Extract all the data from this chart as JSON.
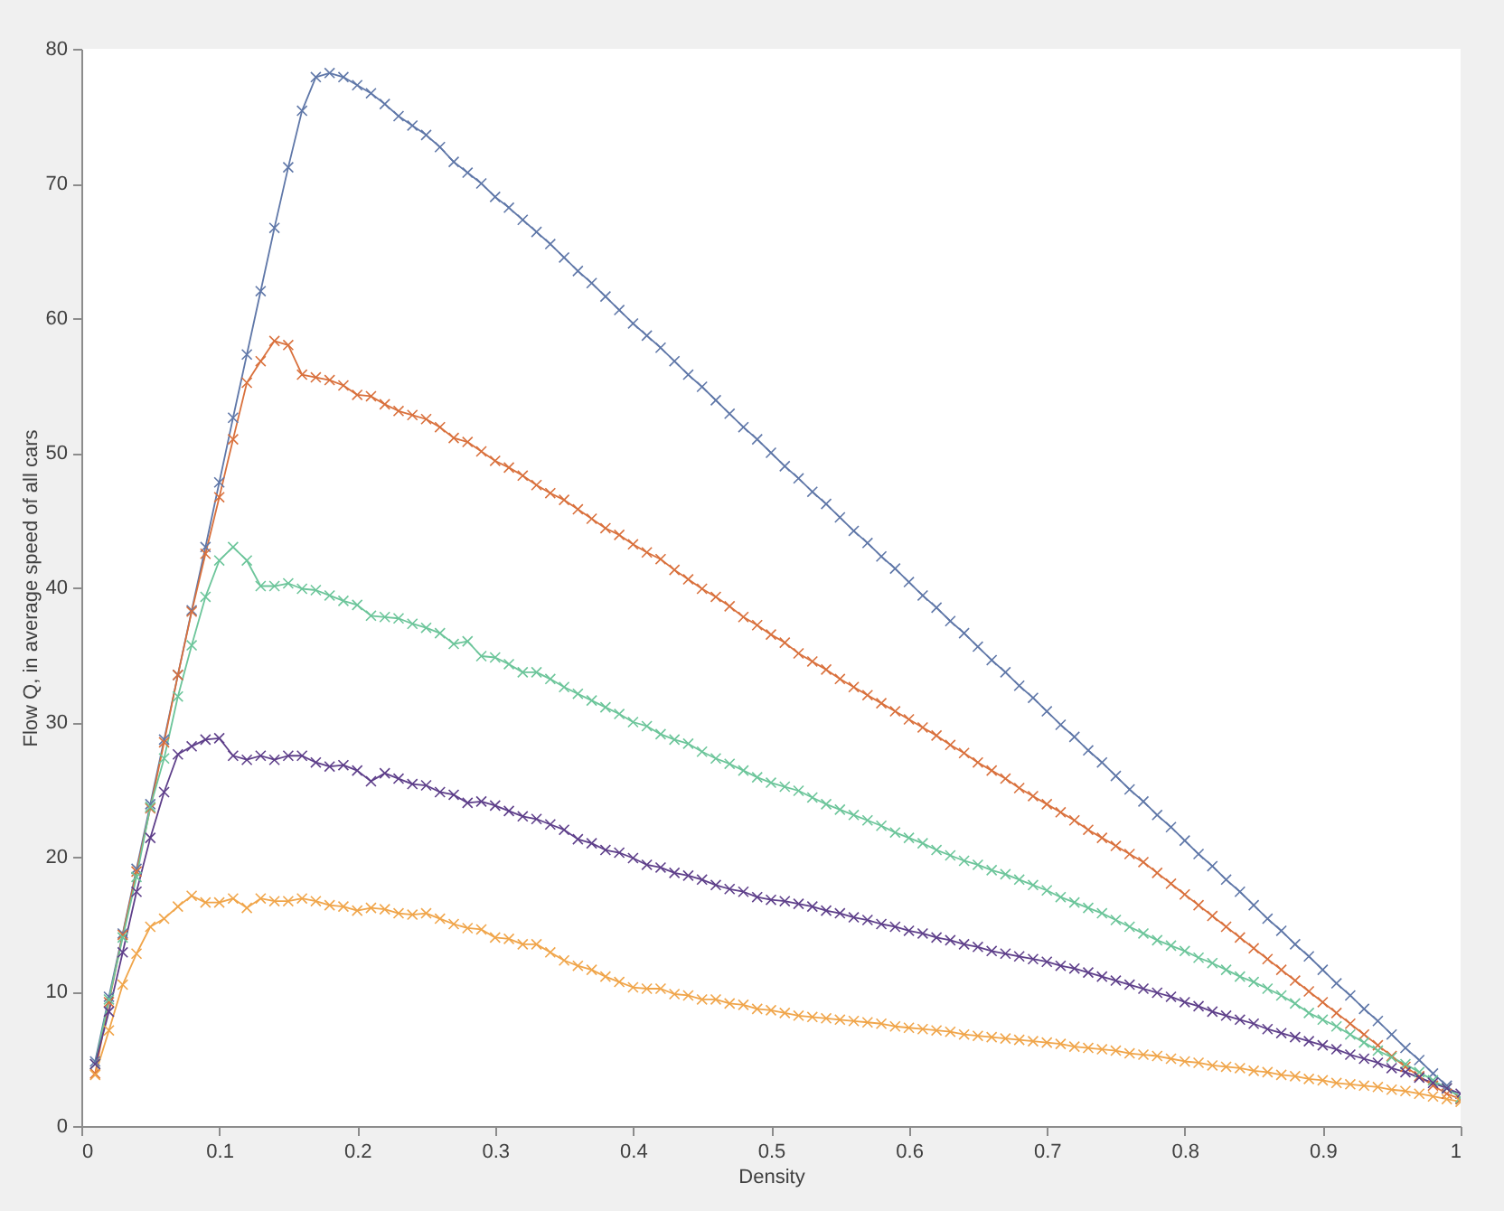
{
  "chart_data": {
    "type": "line",
    "xlabel": "Density",
    "ylabel": "Flow Q, in average speed of all cars",
    "x": [
      0.01,
      0.02,
      0.03,
      0.04,
      0.05,
      0.06,
      0.07,
      0.08,
      0.09,
      0.1,
      0.11,
      0.12,
      0.13,
      0.14,
      0.15,
      0.16,
      0.17,
      0.18,
      0.19,
      0.2,
      0.21,
      0.22,
      0.23,
      0.24,
      0.25,
      0.26,
      0.27,
      0.28,
      0.29,
      0.3,
      0.31,
      0.32,
      0.33,
      0.34,
      0.35,
      0.36,
      0.37,
      0.38,
      0.39,
      0.4,
      0.41,
      0.42,
      0.43,
      0.44,
      0.45,
      0.46,
      0.47,
      0.48,
      0.49,
      0.5,
      0.51,
      0.52,
      0.53,
      0.54,
      0.55,
      0.56,
      0.57,
      0.58,
      0.59,
      0.6,
      0.61,
      0.62,
      0.63,
      0.64,
      0.65,
      0.66,
      0.67,
      0.68,
      0.69,
      0.7,
      0.71,
      0.72,
      0.73,
      0.74,
      0.75,
      0.76,
      0.77,
      0.78,
      0.79,
      0.8,
      0.81,
      0.82,
      0.83,
      0.84,
      0.85,
      0.86,
      0.87,
      0.88,
      0.89,
      0.9,
      0.91,
      0.92,
      0.93,
      0.94,
      0.95,
      0.96,
      0.97,
      0.98,
      0.99,
      1.0
    ],
    "xlim": [
      0,
      1
    ],
    "xticks": [
      0,
      0.1,
      0.2,
      0.3,
      0.4,
      0.5,
      0.6,
      0.7,
      0.8,
      0.9,
      1
    ],
    "ylim": [
      0,
      80
    ],
    "yticks": [
      0,
      10,
      20,
      30,
      40,
      50,
      60,
      70,
      80
    ],
    "marker": "cross",
    "line_style": "solid",
    "series": [
      {
        "color": "#5f77a8",
        "values": [
          4.8,
          9.6,
          14.3,
          19.1,
          23.9,
          28.7,
          33.5,
          38.3,
          43.0,
          47.8,
          52.6,
          57.3,
          62.0,
          66.7,
          71.2,
          75.4,
          77.9,
          78.2,
          77.9,
          77.3,
          76.7,
          75.9,
          75.0,
          74.3,
          73.6,
          72.7,
          71.6,
          70.8,
          70.0,
          69.0,
          68.2,
          67.3,
          66.4,
          65.5,
          64.5,
          63.5,
          62.6,
          61.6,
          60.6,
          59.6,
          58.7,
          57.8,
          56.8,
          55.8,
          54.9,
          53.9,
          52.9,
          51.9,
          51.0,
          50.0,
          49.0,
          48.1,
          47.1,
          46.2,
          45.2,
          44.2,
          43.3,
          42.3,
          41.4,
          40.4,
          39.4,
          38.5,
          37.5,
          36.6,
          35.6,
          34.6,
          33.7,
          32.7,
          31.8,
          30.8,
          29.8,
          28.9,
          27.9,
          27.0,
          26.0,
          25.0,
          24.1,
          23.1,
          22.2,
          21.2,
          20.2,
          19.3,
          18.3,
          17.4,
          16.4,
          15.4,
          14.5,
          13.5,
          12.6,
          11.6,
          10.6,
          9.7,
          8.7,
          7.8,
          6.8,
          5.8,
          4.9,
          3.9,
          3.0,
          2.0
        ]
      },
      {
        "color": "#d9703c",
        "values": [
          3.9,
          9.2,
          14.2,
          18.9,
          23.6,
          28.5,
          33.5,
          38.2,
          42.5,
          46.7,
          51.0,
          55.2,
          56.8,
          58.3,
          58.0,
          55.8,
          55.6,
          55.4,
          55.0,
          54.3,
          54.2,
          53.6,
          53.1,
          52.8,
          52.5,
          51.9,
          51.1,
          50.8,
          50.1,
          49.4,
          48.9,
          48.3,
          47.6,
          47.0,
          46.5,
          45.8,
          45.1,
          44.4,
          43.9,
          43.2,
          42.6,
          42.1,
          41.3,
          40.6,
          39.9,
          39.3,
          38.6,
          37.8,
          37.2,
          36.5,
          35.9,
          35.1,
          34.5,
          33.9,
          33.2,
          32.6,
          32.0,
          31.4,
          30.8,
          30.2,
          29.6,
          29.0,
          28.3,
          27.7,
          27.0,
          26.4,
          25.8,
          25.1,
          24.5,
          23.9,
          23.3,
          22.7,
          22.0,
          21.4,
          20.8,
          20.2,
          19.6,
          18.8,
          18.0,
          17.2,
          16.4,
          15.6,
          14.8,
          14.0,
          13.2,
          12.4,
          11.6,
          10.8,
          10.0,
          9.2,
          8.4,
          7.6,
          6.8,
          6.0,
          5.2,
          4.4,
          3.7,
          3.0,
          2.4,
          2.0
        ]
      },
      {
        "color": "#6cc59a",
        "values": [
          4.6,
          9.4,
          14.0,
          18.5,
          23.7,
          27.3,
          31.9,
          35.7,
          39.3,
          42.0,
          43.0,
          42.0,
          40.1,
          40.1,
          40.3,
          39.9,
          39.8,
          39.4,
          39.0,
          38.7,
          37.9,
          37.8,
          37.7,
          37.3,
          37.0,
          36.6,
          35.8,
          36.0,
          34.9,
          34.8,
          34.3,
          33.7,
          33.7,
          33.2,
          32.6,
          32.1,
          31.6,
          31.1,
          30.6,
          30.0,
          29.7,
          29.1,
          28.7,
          28.4,
          27.8,
          27.3,
          26.9,
          26.4,
          25.9,
          25.5,
          25.2,
          24.9,
          24.4,
          23.9,
          23.5,
          23.1,
          22.7,
          22.3,
          21.8,
          21.4,
          21.0,
          20.5,
          20.1,
          19.7,
          19.4,
          19.0,
          18.7,
          18.3,
          17.9,
          17.5,
          17.0,
          16.6,
          16.2,
          15.8,
          15.3,
          14.8,
          14.3,
          13.8,
          13.4,
          13.0,
          12.5,
          12.1,
          11.6,
          11.1,
          10.7,
          10.2,
          9.7,
          9.1,
          8.4,
          7.9,
          7.4,
          6.8,
          6.2,
          5.6,
          5.1,
          4.6,
          4.0,
          3.4,
          2.8,
          2.1
        ]
      },
      {
        "color": "#5e3f8a",
        "values": [
          4.6,
          8.5,
          12.9,
          17.4,
          21.4,
          24.8,
          27.6,
          28.2,
          28.7,
          28.8,
          27.5,
          27.2,
          27.5,
          27.2,
          27.5,
          27.5,
          27.0,
          26.7,
          26.8,
          26.4,
          25.6,
          26.2,
          25.8,
          25.4,
          25.3,
          24.8,
          24.6,
          24.0,
          24.1,
          23.8,
          23.4,
          23.0,
          22.8,
          22.4,
          22.0,
          21.3,
          21.0,
          20.5,
          20.3,
          19.9,
          19.4,
          19.2,
          18.8,
          18.6,
          18.3,
          17.9,
          17.6,
          17.4,
          17.0,
          16.8,
          16.7,
          16.5,
          16.3,
          16.0,
          15.8,
          15.5,
          15.3,
          15.0,
          14.8,
          14.5,
          14.3,
          14.0,
          13.8,
          13.5,
          13.3,
          13.0,
          12.8,
          12.6,
          12.4,
          12.2,
          11.9,
          11.7,
          11.4,
          11.1,
          10.8,
          10.5,
          10.2,
          9.9,
          9.6,
          9.2,
          8.9,
          8.5,
          8.2,
          7.9,
          7.6,
          7.2,
          6.9,
          6.6,
          6.3,
          6.0,
          5.7,
          5.3,
          5.0,
          4.7,
          4.3,
          4.0,
          3.6,
          3.2,
          2.8,
          2.4
        ]
      },
      {
        "color": "#f0a54a",
        "values": [
          3.8,
          7.1,
          10.5,
          12.8,
          14.8,
          15.4,
          16.3,
          17.1,
          16.6,
          16.6,
          16.9,
          16.2,
          16.9,
          16.7,
          16.7,
          16.9,
          16.7,
          16.4,
          16.3,
          16.0,
          16.2,
          16.1,
          15.8,
          15.7,
          15.8,
          15.4,
          15.0,
          14.7,
          14.6,
          14.0,
          13.9,
          13.5,
          13.5,
          12.9,
          12.3,
          11.9,
          11.6,
          11.1,
          10.7,
          10.3,
          10.2,
          10.2,
          9.8,
          9.7,
          9.4,
          9.4,
          9.1,
          9.0,
          8.7,
          8.6,
          8.4,
          8.2,
          8.1,
          8.0,
          7.9,
          7.8,
          7.7,
          7.6,
          7.4,
          7.3,
          7.2,
          7.1,
          7.0,
          6.8,
          6.7,
          6.6,
          6.5,
          6.4,
          6.3,
          6.2,
          6.1,
          5.9,
          5.8,
          5.7,
          5.6,
          5.4,
          5.3,
          5.2,
          5.0,
          4.8,
          4.7,
          4.5,
          4.4,
          4.3,
          4.1,
          4.0,
          3.8,
          3.7,
          3.5,
          3.4,
          3.2,
          3.1,
          3.0,
          2.9,
          2.7,
          2.6,
          2.4,
          2.2,
          2.0,
          1.8
        ]
      }
    ]
  }
}
